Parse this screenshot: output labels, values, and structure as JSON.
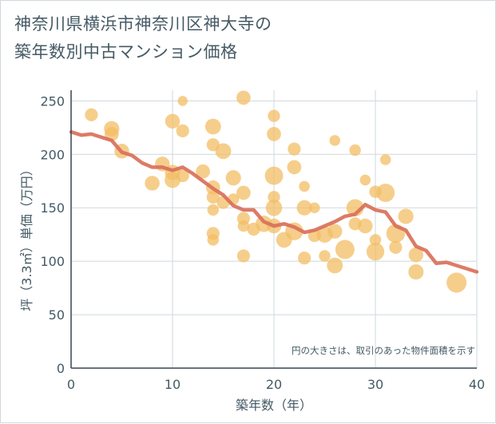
{
  "header": {
    "title_line1": "神奈川県横浜市神奈川区神大寺の",
    "title_line2": "築年数別中古マンション価格"
  },
  "chart_data": {
    "type": "scatter",
    "title": "神奈川県横浜市神奈川区神大寺の築年数別中古マンション価格",
    "xlabel": "築年数（年）",
    "ylabel": "坪（3.3㎡）単価（万円）",
    "note": "円の大きさは、取引のあった物件面積を示す",
    "xlim": [
      0,
      40
    ],
    "ylim": [
      0,
      260
    ],
    "xticks": [
      0,
      10,
      20,
      30,
      40
    ],
    "yticks": [
      0,
      50,
      100,
      150,
      200,
      250
    ],
    "grid": true,
    "colors": {
      "bubble": "#f3bd64",
      "line": "#d9705a",
      "grid": "#cfd8dc",
      "text": "#455a64"
    },
    "bubbles": [
      [
        2,
        237,
        1.0
      ],
      [
        4,
        224,
        1.4
      ],
      [
        4,
        219,
        1.2
      ],
      [
        5,
        203,
        1.3
      ],
      [
        8,
        173,
        1.3
      ],
      [
        9,
        191,
        1.3
      ],
      [
        10,
        231,
        1.3
      ],
      [
        10,
        183,
        1.4
      ],
      [
        10,
        176,
        1.5
      ],
      [
        11,
        250,
        0.6
      ],
      [
        11,
        222,
        1.0
      ],
      [
        11,
        180,
        1.0
      ],
      [
        13,
        184,
        1.2
      ],
      [
        14,
        226,
        1.5
      ],
      [
        14,
        209,
        1.0
      ],
      [
        14,
        169,
        1.2
      ],
      [
        14,
        160,
        1.0
      ],
      [
        14,
        148,
        0.8
      ],
      [
        14,
        126,
        1.0
      ],
      [
        14,
        120,
        0.8
      ],
      [
        15,
        203,
        1.5
      ],
      [
        15,
        155,
        1.0
      ],
      [
        16,
        178,
        1.4
      ],
      [
        16,
        158,
        0.8
      ],
      [
        17,
        253,
        1.2
      ],
      [
        17,
        164,
        1.2
      ],
      [
        17,
        140,
        1.0
      ],
      [
        17,
        133,
        0.8
      ],
      [
        17,
        105,
        1.0
      ],
      [
        18,
        130,
        1.0
      ],
      [
        19,
        135,
        1.6
      ],
      [
        20,
        236,
        0.9
      ],
      [
        20,
        219,
        1.2
      ],
      [
        20,
        180,
        2.0
      ],
      [
        20,
        160,
        0.9
      ],
      [
        20,
        150,
        1.6
      ],
      [
        20,
        133,
        1.3
      ],
      [
        21,
        120,
        1.5
      ],
      [
        22,
        205,
        1.0
      ],
      [
        22,
        188,
        1.2
      ],
      [
        22,
        128,
        1.9
      ],
      [
        23,
        170,
        0.7
      ],
      [
        23,
        150,
        1.4
      ],
      [
        23,
        103,
        1.0
      ],
      [
        24,
        150,
        0.7
      ],
      [
        24,
        124,
        1.0
      ],
      [
        25,
        125,
        1.6
      ],
      [
        25,
        105,
        0.8
      ],
      [
        26,
        213,
        0.7
      ],
      [
        26,
        128,
        1.3
      ],
      [
        26,
        96,
        1.5
      ],
      [
        27,
        111,
        2.2
      ],
      [
        28,
        204,
        0.8
      ],
      [
        28,
        150,
        1.8
      ],
      [
        28,
        135,
        1.0
      ],
      [
        29,
        176,
        0.7
      ],
      [
        29,
        133,
        1.3
      ],
      [
        30,
        165,
        0.9
      ],
      [
        30,
        120,
        0.8
      ],
      [
        30,
        109,
        1.9
      ],
      [
        31,
        195,
        0.7
      ],
      [
        31,
        164,
        2.0
      ],
      [
        32,
        126,
        2.1
      ],
      [
        32,
        113,
        1.0
      ],
      [
        33,
        142,
        1.4
      ],
      [
        34,
        106,
        1.3
      ],
      [
        34,
        90,
        1.4
      ],
      [
        38,
        80,
        2.4
      ]
    ],
    "series": [
      {
        "x": [
          0,
          1,
          2,
          3,
          4,
          5,
          6,
          7,
          8,
          9,
          10,
          11,
          12,
          13,
          14,
          15,
          16,
          17,
          18,
          19,
          20,
          21,
          22,
          23,
          24,
          25,
          26,
          27,
          28,
          29,
          30,
          31,
          32,
          33,
          34,
          35,
          36,
          37,
          38,
          39,
          40
        ],
        "values": [
          221,
          218,
          219,
          216,
          213,
          202,
          199,
          192,
          188,
          188,
          185,
          188,
          182,
          175,
          168,
          162,
          152,
          148,
          148,
          137,
          133,
          135,
          132,
          127,
          129,
          133,
          137,
          142,
          144,
          153,
          148,
          146,
          133,
          129,
          114,
          110,
          98,
          99,
          96,
          93,
          90
        ]
      }
    ]
  }
}
